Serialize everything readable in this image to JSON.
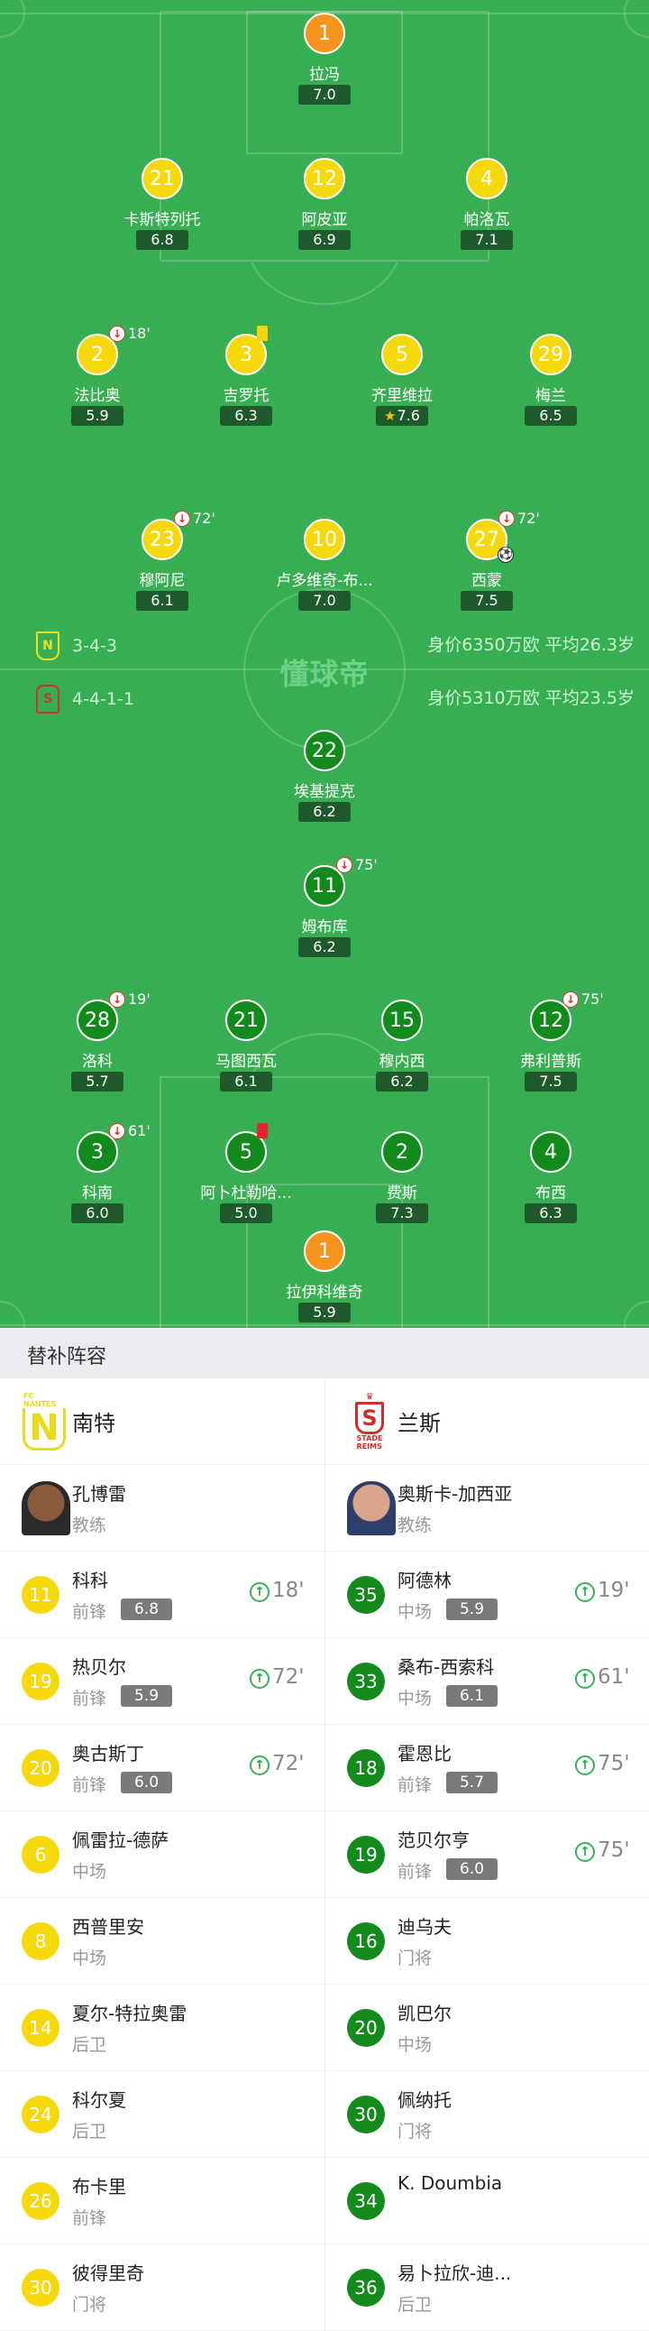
{
  "colors": {
    "pitch": "#38ae53",
    "home": "#f5d90a",
    "home_gk": "#f7941d",
    "away": "#138a1c",
    "away_gk": "#f7941d",
    "rating_bg": "#1f5a2c"
  },
  "watermark": "懂球帝",
  "home": {
    "name": "南特",
    "crest_text": "FC NANTES",
    "formation": "3-4-3",
    "info": "身价6350万欧 平均26.3岁",
    "coach": {
      "name": "孔博雷",
      "role": "教练"
    },
    "lineup": [
      {
        "number": "1",
        "name": "拉冯",
        "rating": "7.0",
        "gk": true
      },
      {
        "number": "21",
        "name": "卡斯特列托",
        "rating": "6.8"
      },
      {
        "number": "12",
        "name": "阿皮亚",
        "rating": "6.9"
      },
      {
        "number": "4",
        "name": "帕洛瓦",
        "rating": "7.1"
      },
      {
        "number": "2",
        "name": "法比奥",
        "rating": "5.9",
        "sub_off": "18'"
      },
      {
        "number": "3",
        "name": "吉罗托",
        "rating": "6.3",
        "card": "yellow"
      },
      {
        "number": "5",
        "name": "齐里维拉",
        "rating": "7.6",
        "star": true
      },
      {
        "number": "29",
        "name": "梅兰",
        "rating": "6.5"
      },
      {
        "number": "23",
        "name": "穆阿尼",
        "rating": "6.1",
        "sub_off": "72'"
      },
      {
        "number": "10",
        "name": "卢多维奇-布...",
        "rating": "7.0"
      },
      {
        "number": "27",
        "name": "西蒙",
        "rating": "7.5",
        "sub_off": "72'",
        "goal": true
      }
    ],
    "subs": [
      {
        "number": "11",
        "name": "科科",
        "position": "前锋",
        "rating": "6.8",
        "sub_on": "18'"
      },
      {
        "number": "19",
        "name": "热贝尔",
        "position": "前锋",
        "rating": "5.9",
        "sub_on": "72'"
      },
      {
        "number": "20",
        "name": "奥古斯丁",
        "position": "前锋",
        "rating": "6.0",
        "sub_on": "72'"
      },
      {
        "number": "6",
        "name": "佩雷拉-德萨",
        "position": "中场"
      },
      {
        "number": "8",
        "name": "西普里安",
        "position": "中场"
      },
      {
        "number": "14",
        "name": "夏尔-特拉奥雷",
        "position": "后卫"
      },
      {
        "number": "24",
        "name": "科尔夏",
        "position": "后卫"
      },
      {
        "number": "26",
        "name": "布卡里",
        "position": "前锋"
      },
      {
        "number": "30",
        "name": "彼得里奇",
        "position": "门将"
      }
    ]
  },
  "away": {
    "name": "兰斯",
    "crest_text": "STADE REIMS",
    "formation": "4-4-1-1",
    "info": "身价5310万欧 平均23.5岁",
    "coach": {
      "name": "奥斯卡-加西亚",
      "role": "教练"
    },
    "lineup": [
      {
        "number": "22",
        "name": "埃基提克",
        "rating": "6.2"
      },
      {
        "number": "11",
        "name": "姆布库",
        "rating": "6.2",
        "sub_off": "75'"
      },
      {
        "number": "28",
        "name": "洛科",
        "rating": "5.7",
        "sub_off": "19'"
      },
      {
        "number": "21",
        "name": "马图西瓦",
        "rating": "6.1"
      },
      {
        "number": "15",
        "name": "穆内西",
        "rating": "6.2"
      },
      {
        "number": "12",
        "name": "弗利普斯",
        "rating": "7.5",
        "sub_off": "75'"
      },
      {
        "number": "3",
        "name": "科南",
        "rating": "6.0",
        "sub_off": "61'"
      },
      {
        "number": "5",
        "name": "阿卜杜勒哈...",
        "rating": "5.0",
        "card": "red"
      },
      {
        "number": "2",
        "name": "费斯",
        "rating": "7.3"
      },
      {
        "number": "4",
        "name": "布西",
        "rating": "6.3"
      },
      {
        "number": "1",
        "name": "拉伊科维奇",
        "rating": "5.9",
        "gk": true
      }
    ],
    "subs": [
      {
        "number": "35",
        "name": "阿德林",
        "position": "中场",
        "rating": "5.9",
        "sub_on": "19'"
      },
      {
        "number": "33",
        "name": "桑布-西索科",
        "position": "中场",
        "rating": "6.1",
        "sub_on": "61'"
      },
      {
        "number": "18",
        "name": "霍恩比",
        "position": "前锋",
        "rating": "5.7",
        "sub_on": "75'"
      },
      {
        "number": "19",
        "name": "范贝尔亨",
        "position": "前锋",
        "rating": "6.0",
        "sub_on": "75'"
      },
      {
        "number": "16",
        "name": "迪乌夫",
        "position": "门将"
      },
      {
        "number": "20",
        "name": "凯巴尔",
        "position": "中场"
      },
      {
        "number": "30",
        "name": "佩纳托",
        "position": "门将"
      },
      {
        "number": "34",
        "name": "K. Doumbia",
        "position": ""
      },
      {
        "number": "36",
        "name": "易卜拉欣-迪...",
        "position": "后卫"
      }
    ]
  },
  "subs_title": "替补阵容"
}
